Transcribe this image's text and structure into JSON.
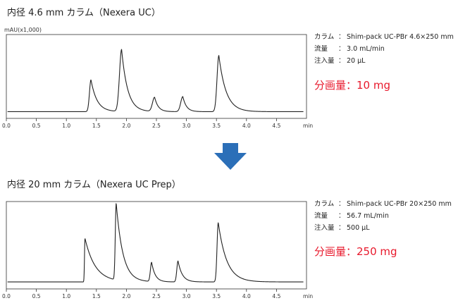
{
  "panels": [
    {
      "title": "内径 4.6 mm カラム（Nexera UC）",
      "ylabel": "mAU(x1,000)",
      "conditions": [
        {
          "label": "カラム",
          "value": "Shim-pack UC-PBr 4.6×250 mm"
        },
        {
          "label": "流量",
          "value": "3.0 mL/min"
        },
        {
          "label": "注入量",
          "value": "20 µL"
        }
      ],
      "amount": "分画量：10 mg"
    },
    {
      "title": "内径 20 mm カラム（Nexera UC Prep）",
      "ylabel": "",
      "conditions": [
        {
          "label": "カラム",
          "value": "Shim-pack UC-PBr 20×250 mm"
        },
        {
          "label": "流量",
          "value": "56.7 mL/min"
        },
        {
          "label": "注入量",
          "value": "500 µL"
        }
      ],
      "amount": "分画量：250 mg"
    }
  ],
  "colors": {
    "trace": "#222222",
    "accent": "#e8192c",
    "arrow": "#2b6fb8"
  },
  "chart_data": [
    {
      "type": "line",
      "title": "内径 4.6 mm カラム（Nexera UC）",
      "ylabel": "mAU(x1,000)",
      "xlabel": "min",
      "xlim": [
        0,
        5.0
      ],
      "ylim": [
        0,
        1.0
      ],
      "x_ticks": [
        "0.0",
        "0.5",
        "1.0",
        "1.5",
        "2.0",
        "2.5",
        "3.0",
        "3.5",
        "4.0",
        "4.5"
      ],
      "baseline": 0.08,
      "peaks": [
        {
          "rt": 1.41,
          "height": 0.38,
          "rise": 0.025,
          "tail": 0.1
        },
        {
          "rt": 1.92,
          "height": 0.74,
          "rise": 0.035,
          "tail": 0.1
        },
        {
          "rt": 2.47,
          "height": 0.17,
          "rise": 0.035,
          "tail": 0.06
        },
        {
          "rt": 2.94,
          "height": 0.18,
          "rise": 0.035,
          "tail": 0.06
        },
        {
          "rt": 3.54,
          "height": 0.67,
          "rise": 0.03,
          "tail": 0.12
        }
      ]
    },
    {
      "type": "line",
      "title": "内径 20 mm カラム（Nexera UC Prep）",
      "ylabel": "",
      "xlabel": "min",
      "xlim": [
        0,
        5.0
      ],
      "ylim": [
        0,
        1.0
      ],
      "x_ticks": [
        "0.0",
        "0.5",
        "1.0",
        "1.5",
        "2.0",
        "2.5",
        "3.0",
        "3.5",
        "4.0",
        "4.5"
      ],
      "baseline": 0.08,
      "peaks": [
        {
          "rt": 1.31,
          "height": 0.5,
          "rise": 0.008,
          "tail": 0.17
        },
        {
          "rt": 1.83,
          "height": 0.88,
          "rise": 0.015,
          "tail": 0.11
        },
        {
          "rt": 2.42,
          "height": 0.22,
          "rise": 0.02,
          "tail": 0.06
        },
        {
          "rt": 2.86,
          "height": 0.24,
          "rise": 0.02,
          "tail": 0.07
        },
        {
          "rt": 3.53,
          "height": 0.68,
          "rise": 0.02,
          "tail": 0.14
        }
      ]
    }
  ]
}
